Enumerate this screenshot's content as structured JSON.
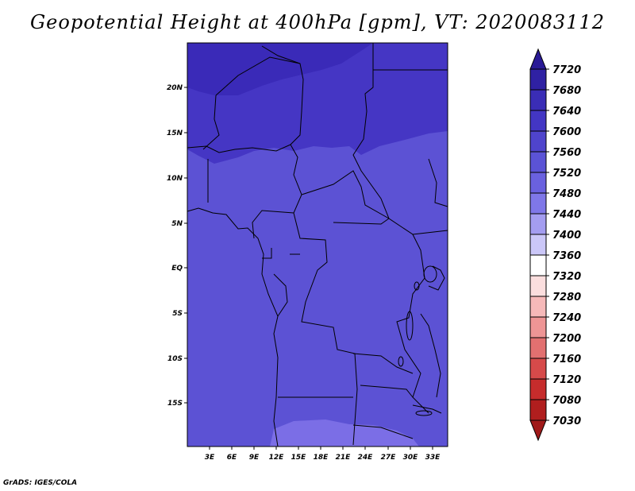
{
  "title": "Geopotential Height at 400hPa [gpm], VT: 2020083112",
  "footer": "GrADS: IGES/COLA",
  "map": {
    "lat_labels": [
      "20N",
      "15N",
      "10N",
      "5N",
      "EQ",
      "5S",
      "10S",
      "15S"
    ],
    "lon_labels": [
      "3E",
      "6E",
      "9E",
      "12E",
      "15E",
      "18E",
      "21E",
      "24E",
      "27E",
      "30E",
      "33E"
    ]
  },
  "colorbar": {
    "labels": [
      "7720",
      "7680",
      "7640",
      "7600",
      "7560",
      "7520",
      "7480",
      "7440",
      "7400",
      "7360",
      "7320",
      "7280",
      "7240",
      "7200",
      "7160",
      "7120",
      "7080",
      "7030"
    ],
    "colors": {
      "top_arrow": "#2a1a96",
      "bands": [
        "#2f21a3",
        "#3a2db6",
        "#4336c4",
        "#4f44cc",
        "#5b53d6",
        "#6a61df",
        "#7f77e8",
        "#a49df0",
        "#cbc7f8",
        "#ffffff",
        "#fbdede",
        "#f6b9b9",
        "#ee9595",
        "#e27070",
        "#d64a4a",
        "#c62c2c",
        "#b01e1e"
      ],
      "bottom_arrow": "#a01a1a"
    }
  },
  "fill_colors": {
    "c7680": "#3a2ab8",
    "c7640": "#4536c4",
    "c7600": "#5c52d4",
    "c7560": "#6a5fdc",
    "c7520": "#7b6ee6"
  }
}
